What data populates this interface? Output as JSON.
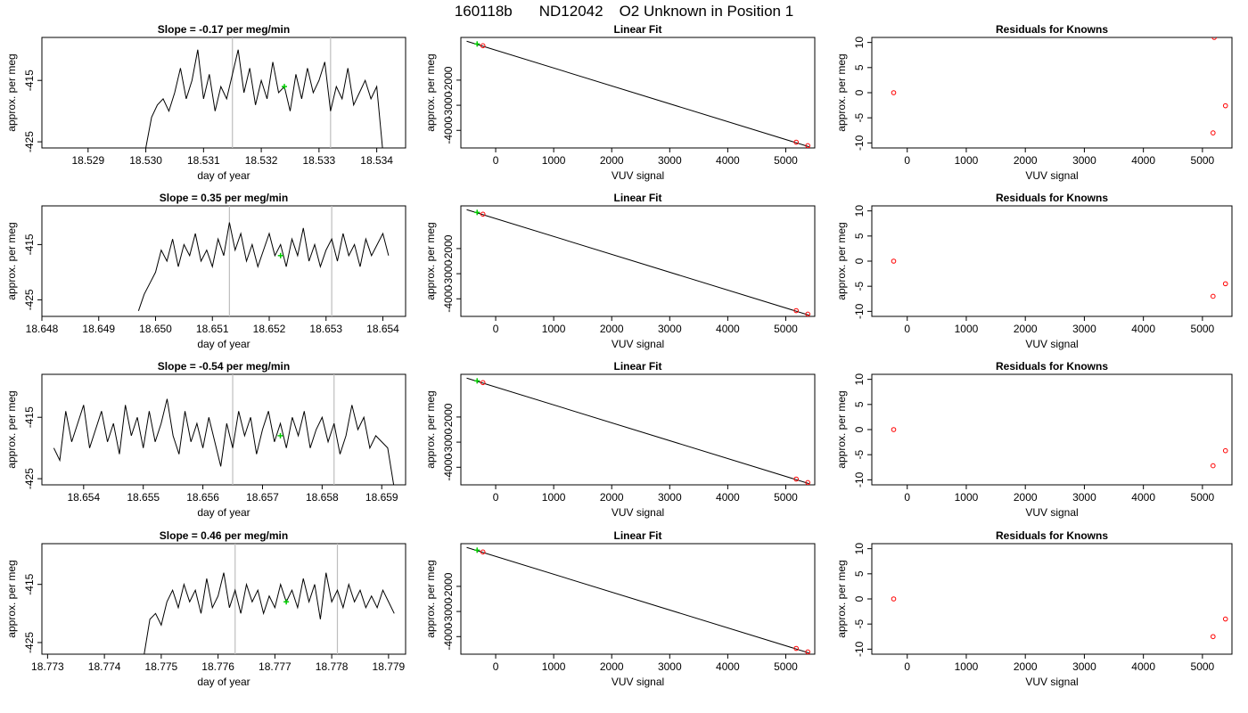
{
  "figure": {
    "run_id": "160118b",
    "tank_id": "ND12042",
    "description": "O2 Unknown in Position  1"
  },
  "chart_data": [
    {
      "row": 1,
      "panel": "time",
      "type": "line",
      "title_prefix": "Slope = ",
      "slope": "-0.17",
      "title_suffix": " per meg/min",
      "xlabel": "day of year",
      "ylabel": "approx. per meg",
      "xlim": [
        18.5282,
        18.5345
      ],
      "ylim": [
        -426,
        -408
      ],
      "xticks": [
        "18.529",
        "18.530",
        "18.531",
        "18.532",
        "18.533",
        "18.534"
      ],
      "yticks": [
        "-415",
        "-425"
      ],
      "vlines": [
        18.5315,
        18.5332
      ],
      "series": [
        {
          "x": [
            18.53,
            18.5301,
            18.5302,
            18.5303,
            18.5304,
            18.5305,
            18.5306,
            18.5307,
            18.5308,
            18.5309,
            18.531,
            18.5311,
            18.5312,
            18.5313,
            18.5314,
            18.5315,
            18.5316,
            18.5317,
            18.5318,
            18.5319,
            18.532,
            18.5321,
            18.5322,
            18.5323,
            18.5324,
            18.5325,
            18.5326,
            18.5327,
            18.5328,
            18.5329,
            18.533,
            18.5331,
            18.5332,
            18.5333,
            18.5334,
            18.5335,
            18.5336,
            18.5337,
            18.5338,
            18.5339,
            18.534,
            18.5341
          ],
          "y": [
            -426,
            -421,
            -419,
            -418,
            -420,
            -417,
            -413,
            -418,
            -415,
            -410,
            -418,
            -414,
            -420,
            -416,
            -418,
            -414,
            -410,
            -417,
            -413,
            -419,
            -415,
            -418,
            -412,
            -417,
            -416,
            -420,
            -414,
            -418,
            -413,
            -417,
            -415,
            -412,
            -420,
            -416,
            -418,
            -413,
            -419,
            -417,
            -415,
            -418,
            -416,
            -426
          ]
        },
        {
          "x": [
            18.5324
          ],
          "y": [
            -416
          ]
        }
      ]
    },
    {
      "row": 1,
      "panel": "fit",
      "type": "scatter",
      "title": "Linear Fit",
      "xlabel": "VUV signal",
      "ylabel": "approx. per meg",
      "xlim": [
        -600,
        5500
      ],
      "ylim": [
        -4700,
        -300
      ],
      "xticks": [
        0,
        1000,
        2000,
        3000,
        4000,
        5000
      ],
      "yticks": [
        -2000,
        -3000,
        -4000
      ],
      "line": {
        "x": [
          -500,
          5400
        ],
        "y": [
          -450,
          -4650
        ]
      },
      "knowns": {
        "x": [
          -220,
          5180,
          5380
        ],
        "y": [
          -630,
          -4470,
          -4610
        ]
      },
      "unknown": {
        "x": [
          -320
        ],
        "y": [
          -560
        ]
      }
    },
    {
      "row": 1,
      "panel": "residuals",
      "type": "scatter",
      "title": "Residuals for Knowns",
      "xlabel": "VUV signal",
      "ylabel": "approx. per meg",
      "xlim": [
        -600,
        5500
      ],
      "ylim": [
        -11,
        11
      ],
      "xticks": [
        0,
        1000,
        2000,
        3000,
        4000,
        5000
      ],
      "yticks": [
        10,
        5,
        0,
        -5,
        -10
      ],
      "points": {
        "x": [
          -230,
          5180,
          5200,
          5390
        ],
        "y": [
          0,
          -8,
          11,
          -2.6
        ]
      }
    },
    {
      "row": 2,
      "panel": "time",
      "type": "line",
      "title_prefix": "Slope = ",
      "slope": "0.35",
      "title_suffix": " per meg/min",
      "xlabel": "day of year",
      "ylabel": "approx. per meg",
      "xlim": [
        18.648,
        18.6544
      ],
      "ylim": [
        -428,
        -408
      ],
      "xticks": [
        "18.648",
        "18.649",
        "18.650",
        "18.651",
        "18.652",
        "18.653",
        "18.654"
      ],
      "yticks": [
        "-415",
        "-425"
      ],
      "vlines": [
        18.6513,
        18.6531
      ],
      "series": [
        {
          "x": [
            18.6497,
            18.6498,
            18.6499,
            18.65,
            18.6501,
            18.6502,
            18.6503,
            18.6504,
            18.6505,
            18.6506,
            18.6507,
            18.6508,
            18.6509,
            18.651,
            18.6511,
            18.6512,
            18.6513,
            18.6514,
            18.6515,
            18.6516,
            18.6517,
            18.6518,
            18.6519,
            18.652,
            18.6521,
            18.6522,
            18.6523,
            18.6524,
            18.6525,
            18.6526,
            18.6527,
            18.6528,
            18.6529,
            18.653,
            18.6531,
            18.6532,
            18.6533,
            18.6534,
            18.6535,
            18.6536,
            18.6537,
            18.6538,
            18.6539,
            18.654,
            18.6541
          ],
          "y": [
            -427,
            -424,
            -422,
            -420,
            -416,
            -418,
            -414,
            -419,
            -415,
            -417,
            -413,
            -418,
            -416,
            -419,
            -414,
            -417,
            -411,
            -416,
            -413,
            -418,
            -415,
            -419,
            -416,
            -413,
            -417,
            -415,
            -419,
            -414,
            -417,
            -412,
            -418,
            -415,
            -419,
            -416,
            -414,
            -418,
            -413,
            -417,
            -415,
            -419,
            -414,
            -417,
            -415,
            -413,
            -417
          ]
        },
        {
          "x": [
            18.6522
          ],
          "y": [
            -417
          ]
        }
      ]
    },
    {
      "row": 2,
      "panel": "fit",
      "type": "scatter",
      "title": "Linear Fit",
      "xlabel": "VUV signal",
      "ylabel": "approx. per meg",
      "xlim": [
        -600,
        5500
      ],
      "ylim": [
        -4700,
        -300
      ],
      "xticks": [
        0,
        1000,
        2000,
        3000,
        4000,
        5000
      ],
      "yticks": [
        -2000,
        -3000,
        -4000
      ],
      "line": {
        "x": [
          -500,
          5400
        ],
        "y": [
          -450,
          -4650
        ]
      },
      "knowns": {
        "x": [
          -220,
          5180,
          5380
        ],
        "y": [
          -630,
          -4470,
          -4610
        ]
      },
      "unknown": {
        "x": [
          -320
        ],
        "y": [
          -560
        ]
      }
    },
    {
      "row": 2,
      "panel": "residuals",
      "type": "scatter",
      "title": "Residuals for Knowns",
      "xlabel": "VUV signal",
      "ylabel": "approx. per meg",
      "xlim": [
        -600,
        5500
      ],
      "ylim": [
        -11,
        11
      ],
      "xticks": [
        0,
        1000,
        2000,
        3000,
        4000,
        5000
      ],
      "yticks": [
        10,
        5,
        0,
        -5,
        -10
      ],
      "points": {
        "x": [
          -230,
          5180,
          5390
        ],
        "y": [
          0,
          -7,
          -4.5
        ]
      }
    },
    {
      "row": 3,
      "panel": "time",
      "type": "line",
      "title_prefix": "Slope = ",
      "slope": "-0.54",
      "title_suffix": " per meg/min",
      "xlabel": "day of year",
      "ylabel": "approx. per meg",
      "xlim": [
        18.6533,
        18.6594
      ],
      "ylim": [
        -426,
        -408
      ],
      "xticks": [
        "18.654",
        "18.655",
        "18.656",
        "18.657",
        "18.658",
        "18.659"
      ],
      "yticks": [
        "-415",
        "-425"
      ],
      "vlines": [
        18.6565,
        18.6582
      ],
      "series": [
        {
          "x": [
            18.6535,
            18.6536,
            18.6537,
            18.6538,
            18.6539,
            18.654,
            18.6541,
            18.6542,
            18.6543,
            18.6544,
            18.6545,
            18.6546,
            18.6547,
            18.6548,
            18.6549,
            18.655,
            18.6551,
            18.6552,
            18.6553,
            18.6554,
            18.6555,
            18.6556,
            18.6557,
            18.6558,
            18.6559,
            18.656,
            18.6561,
            18.6562,
            18.6563,
            18.6564,
            18.6565,
            18.6566,
            18.6567,
            18.6568,
            18.6569,
            18.657,
            18.6571,
            18.6572,
            18.6573,
            18.6574,
            18.6575,
            18.6576,
            18.6577,
            18.6578,
            18.6579,
            18.658,
            18.6581,
            18.6582,
            18.6583,
            18.6584,
            18.6585,
            18.6586,
            18.6587,
            18.6588,
            18.6589,
            18.659,
            18.6591,
            18.6592
          ],
          "y": [
            -420,
            -422,
            -414,
            -419,
            -416,
            -413,
            -420,
            -417,
            -414,
            -419,
            -416,
            -421,
            -413,
            -418,
            -415,
            -420,
            -414,
            -419,
            -416,
            -412,
            -418,
            -421,
            -414,
            -419,
            -416,
            -420,
            -415,
            -419,
            -423,
            -416,
            -420,
            -414,
            -418,
            -415,
            -421,
            -417,
            -414,
            -419,
            -416,
            -420,
            -415,
            -418,
            -414,
            -420,
            -417,
            -415,
            -419,
            -416,
            -421,
            -418,
            -413,
            -417,
            -415,
            -420,
            -418,
            -419,
            -420,
            -426
          ]
        },
        {
          "x": [
            18.6573
          ],
          "y": [
            -418
          ]
        }
      ]
    },
    {
      "row": 3,
      "panel": "fit",
      "type": "scatter",
      "title": "Linear Fit",
      "xlabel": "VUV signal",
      "ylabel": "approx. per meg",
      "xlim": [
        -600,
        5500
      ],
      "ylim": [
        -4700,
        -300
      ],
      "xticks": [
        0,
        1000,
        2000,
        3000,
        4000,
        5000
      ],
      "yticks": [
        -2000,
        -3000,
        -4000
      ],
      "line": {
        "x": [
          -500,
          5400
        ],
        "y": [
          -450,
          -4650
        ]
      },
      "knowns": {
        "x": [
          -220,
          5180,
          5380
        ],
        "y": [
          -630,
          -4470,
          -4610
        ]
      },
      "unknown": {
        "x": [
          -320
        ],
        "y": [
          -560
        ]
      }
    },
    {
      "row": 3,
      "panel": "residuals",
      "type": "scatter",
      "title": "Residuals for Knowns",
      "xlabel": "VUV signal",
      "ylabel": "approx. per meg",
      "xlim": [
        -600,
        5500
      ],
      "ylim": [
        -11,
        11
      ],
      "xticks": [
        0,
        1000,
        2000,
        3000,
        4000,
        5000
      ],
      "yticks": [
        10,
        5,
        0,
        -5,
        -10
      ],
      "points": {
        "x": [
          -230,
          5180,
          5390
        ],
        "y": [
          0,
          -7.2,
          -4.2
        ]
      }
    },
    {
      "row": 4,
      "panel": "time",
      "type": "line",
      "title_prefix": "Slope = ",
      "slope": "0.46",
      "title_suffix": " per meg/min",
      "xlabel": "day of year",
      "ylabel": "approx. per meg",
      "xlim": [
        18.7729,
        18.7793
      ],
      "ylim": [
        -427,
        -408
      ],
      "xticks": [
        "18.773",
        "18.774",
        "18.775",
        "18.776",
        "18.777",
        "18.778",
        "18.779"
      ],
      "yticks": [
        "-415",
        "-425"
      ],
      "vlines": [
        18.7763,
        18.7781
      ],
      "series": [
        {
          "x": [
            18.7747,
            18.7748,
            18.7749,
            18.775,
            18.7751,
            18.7752,
            18.7753,
            18.7754,
            18.7755,
            18.7756,
            18.7757,
            18.7758,
            18.7759,
            18.776,
            18.7761,
            18.7762,
            18.7763,
            18.7764,
            18.7765,
            18.7766,
            18.7767,
            18.7768,
            18.7769,
            18.777,
            18.7771,
            18.7772,
            18.7773,
            18.7774,
            18.7775,
            18.7776,
            18.7777,
            18.7778,
            18.7779,
            18.778,
            18.7781,
            18.7782,
            18.7783,
            18.7784,
            18.7785,
            18.7786,
            18.7787,
            18.7788,
            18.7789,
            18.779,
            18.7791
          ],
          "y": [
            -427,
            -421,
            -420,
            -422,
            -418,
            -416,
            -419,
            -415,
            -418,
            -416,
            -420,
            -414,
            -419,
            -417,
            -413,
            -419,
            -416,
            -420,
            -415,
            -418,
            -416,
            -420,
            -417,
            -419,
            -415,
            -418,
            -416,
            -419,
            -414,
            -418,
            -415,
            -421,
            -413,
            -418,
            -416,
            -419,
            -415,
            -418,
            -416,
            -419,
            -417,
            -419,
            -416,
            -418,
            -420
          ]
        },
        {
          "x": [
            18.7772
          ],
          "y": [
            -418
          ]
        }
      ]
    },
    {
      "row": 4,
      "panel": "fit",
      "type": "scatter",
      "title": "Linear Fit",
      "xlabel": "VUV signal",
      "ylabel": "approx. per meg",
      "xlim": [
        -600,
        5500
      ],
      "ylim": [
        -4700,
        -300
      ],
      "xticks": [
        0,
        1000,
        2000,
        3000,
        4000,
        5000
      ],
      "yticks": [
        -2000,
        -3000,
        -4000
      ],
      "line": {
        "x": [
          -500,
          5400
        ],
        "y": [
          -450,
          -4650
        ]
      },
      "knowns": {
        "x": [
          -220,
          5180,
          5380
        ],
        "y": [
          -630,
          -4470,
          -4610
        ]
      },
      "unknown": {
        "x": [
          -320
        ],
        "y": [
          -560
        ]
      }
    },
    {
      "row": 4,
      "panel": "residuals",
      "type": "scatter",
      "title": "Residuals for Knowns",
      "xlabel": "VUV signal",
      "ylabel": "approx. per meg",
      "xlim": [
        -600,
        5500
      ],
      "ylim": [
        -11,
        11
      ],
      "xticks": [
        0,
        1000,
        2000,
        3000,
        4000,
        5000
      ],
      "yticks": [
        10,
        5,
        0,
        -5,
        -10
      ],
      "points": {
        "x": [
          -230,
          5180,
          5390
        ],
        "y": [
          0,
          -7.5,
          -4
        ]
      }
    }
  ],
  "colors": {
    "line": "#000000",
    "vline": "#bebebe",
    "unknown": "#00cc00",
    "known": "#ff0000",
    "axis": "#000000"
  }
}
